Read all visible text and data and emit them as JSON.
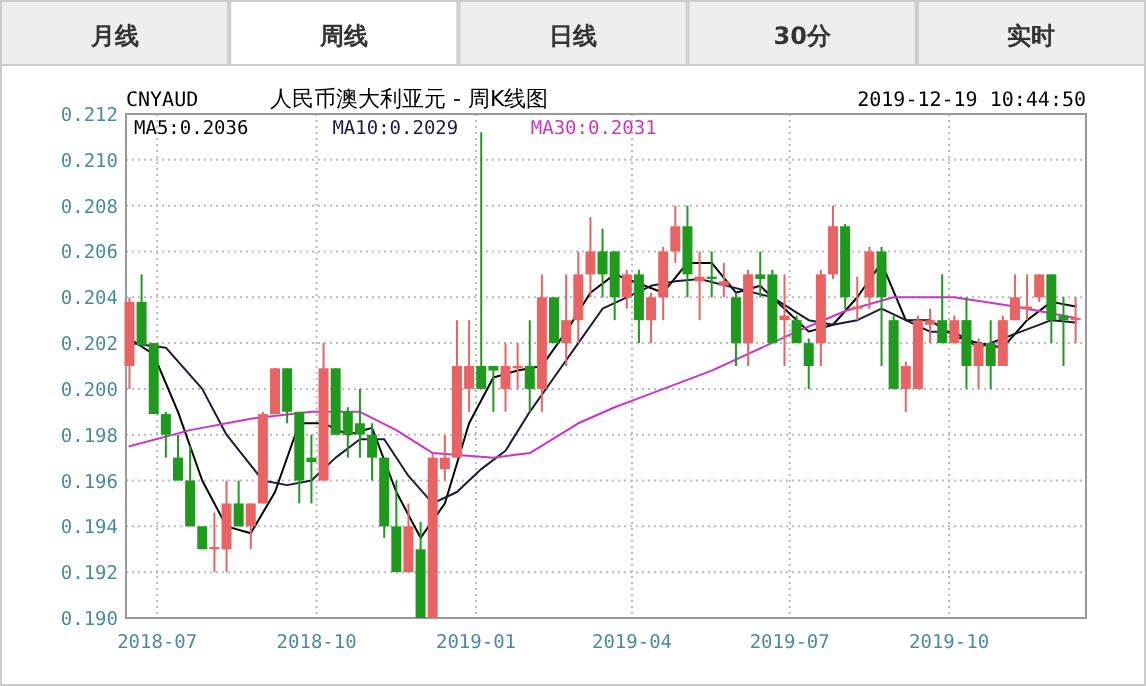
{
  "chart_data": {
    "type": "candlestick",
    "title": "人民币澳大利亚元 - 周K线图",
    "annotations": [
      "月线",
      "周线",
      "日线",
      "30分",
      "实时",
      "CNYAUD",
      "2019-12-19 10:44:50"
    ],
    "x": [
      "2018-06-15",
      "2018-06-22",
      "2018-06-29",
      "2018-07-06",
      "2018-07-13",
      "2018-07-20",
      "2018-07-27",
      "2018-08-03",
      "2018-08-10",
      "2018-08-17",
      "2018-08-24",
      "2018-08-31",
      "2018-09-07",
      "2018-09-14",
      "2018-09-21",
      "2018-09-28",
      "2018-10-05",
      "2018-10-12",
      "2018-10-19",
      "2018-10-26",
      "2018-11-02",
      "2018-11-09",
      "2018-11-16",
      "2018-11-23",
      "2018-11-30",
      "2018-12-07",
      "2018-12-14",
      "2018-12-21",
      "2018-12-28",
      "2019-01-04",
      "2019-01-11",
      "2019-01-18",
      "2019-01-25",
      "2019-02-01",
      "2019-02-08",
      "2019-02-15",
      "2019-02-22",
      "2019-03-01",
      "2019-03-08",
      "2019-03-15",
      "2019-03-22",
      "2019-03-29",
      "2019-04-05",
      "2019-04-12",
      "2019-04-19",
      "2019-04-26",
      "2019-05-03",
      "2019-05-10",
      "2019-05-17",
      "2019-05-24",
      "2019-05-31",
      "2019-06-07",
      "2019-06-14",
      "2019-06-21",
      "2019-06-28",
      "2019-07-05",
      "2019-07-12",
      "2019-07-19",
      "2019-07-26",
      "2019-08-02",
      "2019-08-09",
      "2019-08-16",
      "2019-08-23",
      "2019-08-30",
      "2019-09-06",
      "2019-09-13",
      "2019-09-20",
      "2019-09-27",
      "2019-10-04",
      "2019-10-11",
      "2019-10-18",
      "2019-10-25",
      "2019-11-01",
      "2019-11-08",
      "2019-11-15",
      "2019-11-22",
      "2019-11-29",
      "2019-12-06",
      "2019-12-13"
    ],
    "ohlc": [
      [
        0.201,
        0.204,
        0.2,
        0.2038
      ],
      [
        0.2038,
        0.205,
        0.2019,
        0.2019
      ],
      [
        0.202,
        0.202,
        0.1989,
        0.1989
      ],
      [
        0.1989,
        0.199,
        0.197,
        0.198
      ],
      [
        0.197,
        0.198,
        0.196,
        0.196
      ],
      [
        0.196,
        0.1975,
        0.194,
        0.194
      ],
      [
        0.194,
        0.194,
        0.193,
        0.193
      ],
      [
        0.193,
        0.1946,
        0.192,
        0.1931
      ],
      [
        0.193,
        0.196,
        0.192,
        0.195
      ],
      [
        0.195,
        0.196,
        0.194,
        0.194
      ],
      [
        0.194,
        0.195,
        0.193,
        0.195
      ],
      [
        0.195,
        0.199,
        0.195,
        0.1989
      ],
      [
        0.1989,
        0.2009,
        0.1989,
        0.2009
      ],
      [
        0.2009,
        0.2009,
        0.1985,
        0.199
      ],
      [
        0.199,
        0.199,
        0.195,
        0.196
      ],
      [
        0.197,
        0.198,
        0.195,
        0.1968
      ],
      [
        0.196,
        0.202,
        0.196,
        0.2009
      ],
      [
        0.2009,
        0.2009,
        0.198,
        0.198
      ],
      [
        0.199,
        0.1992,
        0.197,
        0.198
      ],
      [
        0.1985,
        0.2,
        0.197,
        0.198
      ],
      [
        0.198,
        0.1985,
        0.196,
        0.197
      ],
      [
        0.197,
        0.197,
        0.1935,
        0.194
      ],
      [
        0.194,
        0.196,
        0.192,
        0.192
      ],
      [
        0.192,
        0.195,
        0.192,
        0.194
      ],
      [
        0.193,
        0.1942,
        0.19,
        0.19
      ],
      [
        0.19,
        0.1972,
        0.19,
        0.197
      ],
      [
        0.1965,
        0.198,
        0.196,
        0.197
      ],
      [
        0.197,
        0.203,
        0.197,
        0.201
      ],
      [
        0.2,
        0.203,
        0.199,
        0.201
      ],
      [
        0.201,
        0.2112,
        0.2,
        0.2
      ],
      [
        0.201,
        0.201,
        0.199,
        0.2008
      ],
      [
        0.2,
        0.202,
        0.199,
        0.201
      ],
      [
        0.2009,
        0.202,
        0.2,
        0.201
      ],
      [
        0.201,
        0.203,
        0.199,
        0.2
      ],
      [
        0.2,
        0.205,
        0.199,
        0.204
      ],
      [
        0.204,
        0.204,
        0.202,
        0.202
      ],
      [
        0.202,
        0.205,
        0.201,
        0.203
      ],
      [
        0.203,
        0.206,
        0.202,
        0.205
      ],
      [
        0.205,
        0.2075,
        0.204,
        0.206
      ],
      [
        0.206,
        0.207,
        0.204,
        0.205
      ],
      [
        0.206,
        0.206,
        0.203,
        0.204
      ],
      [
        0.204,
        0.2052,
        0.2035,
        0.205
      ],
      [
        0.205,
        0.2052,
        0.202,
        0.203
      ],
      [
        0.203,
        0.2042,
        0.202,
        0.204
      ],
      [
        0.204,
        0.2062,
        0.203,
        0.206
      ],
      [
        0.206,
        0.208,
        0.2055,
        0.2071
      ],
      [
        0.2071,
        0.208,
        0.204,
        0.205
      ],
      [
        0.2047,
        0.206,
        0.203,
        0.2049
      ],
      [
        0.2049,
        0.206,
        0.204,
        0.2048
      ],
      [
        0.2045,
        0.2055,
        0.204,
        0.2047
      ],
      [
        0.204,
        0.2042,
        0.201,
        0.202
      ],
      [
        0.202,
        0.2052,
        0.201,
        0.205
      ],
      [
        0.205,
        0.206,
        0.204,
        0.2048
      ],
      [
        0.205,
        0.2052,
        0.202,
        0.202
      ],
      [
        0.203,
        0.205,
        0.201,
        0.2032
      ],
      [
        0.203,
        0.2032,
        0.202,
        0.202
      ],
      [
        0.202,
        0.2022,
        0.2,
        0.201
      ],
      [
        0.202,
        0.2052,
        0.201,
        0.205
      ],
      [
        0.205,
        0.208,
        0.2048,
        0.2071
      ],
      [
        0.2071,
        0.2072,
        0.2035,
        0.204
      ],
      [
        0.2035,
        0.2049,
        0.203,
        0.2036
      ],
      [
        0.204,
        0.2062,
        0.2035,
        0.206
      ],
      [
        0.206,
        0.2062,
        0.201,
        0.204
      ],
      [
        0.203,
        0.2032,
        0.2,
        0.2
      ],
      [
        0.2,
        0.2012,
        0.199,
        0.201
      ],
      [
        0.2,
        0.2032,
        0.2,
        0.203
      ],
      [
        0.2028,
        0.2035,
        0.202,
        0.203
      ],
      [
        0.203,
        0.205,
        0.202,
        0.202
      ],
      [
        0.202,
        0.2032,
        0.202,
        0.203
      ],
      [
        0.203,
        0.204,
        0.2,
        0.201
      ],
      [
        0.201,
        0.2022,
        0.2,
        0.202
      ],
      [
        0.202,
        0.203,
        0.2,
        0.201
      ],
      [
        0.201,
        0.2032,
        0.201,
        0.203
      ],
      [
        0.203,
        0.205,
        0.203,
        0.204
      ],
      [
        0.2035,
        0.205,
        0.203,
        0.2036
      ],
      [
        0.204,
        0.205,
        0.2038,
        0.205
      ],
      [
        0.205,
        0.205,
        0.202,
        0.203
      ],
      [
        0.2032,
        0.204,
        0.201,
        0.203
      ],
      [
        0.203,
        0.204,
        0.202,
        0.2031
      ]
    ],
    "colors": [
      "#e86464",
      "#1f9a1f",
      "#1f9a1f",
      "#1f9a1f",
      "#1f9a1f",
      "#1f9a1f",
      "#1f9a1f",
      "#e86464",
      "#e86464",
      "#1f9a1f",
      "#e86464",
      "#e86464",
      "#e86464",
      "#1f9a1f",
      "#1f9a1f",
      "#1f9a1f",
      "#e86464",
      "#1f9a1f",
      "#1f9a1f",
      "#1f9a1f",
      "#1f9a1f",
      "#1f9a1f",
      "#1f9a1f",
      "#e86464",
      "#1f9a1f",
      "#e86464",
      "#e86464",
      "#e86464",
      "#e86464",
      "#1f9a1f",
      "#1f9a1f",
      "#e86464",
      "#e86464",
      "#1f9a1f",
      "#e86464",
      "#1f9a1f",
      "#e86464",
      "#e86464",
      "#e86464",
      "#1f9a1f",
      "#1f9a1f",
      "#e86464",
      "#1f9a1f",
      "#e86464",
      "#e86464",
      "#e86464",
      "#1f9a1f",
      "#e86464",
      "#1f9a1f",
      "#e86464",
      "#1f9a1f",
      "#e86464",
      "#1f9a1f",
      "#1f9a1f",
      "#e86464",
      "#1f9a1f",
      "#1f9a1f",
      "#e86464",
      "#e86464",
      "#1f9a1f",
      "#e86464",
      "#e86464",
      "#1f9a1f",
      "#1f9a1f",
      "#e86464",
      "#e86464",
      "#e86464",
      "#1f9a1f",
      "#e86464",
      "#1f9a1f",
      "#e86464",
      "#1f9a1f",
      "#e86464",
      "#e86464",
      "#e86464",
      "#e86464",
      "#1f9a1f",
      "#1f9a1f",
      "#e86464"
    ],
    "series": [
      {
        "name": "MA5:0.2036",
        "type": "line",
        "color": "#000000",
        "x": [
          "2018-06-15",
          "2018-06-29",
          "2018-07-13",
          "2018-07-27",
          "2018-08-10",
          "2018-08-24",
          "2018-09-07",
          "2018-09-21",
          "2018-10-05",
          "2018-10-19",
          "2018-11-02",
          "2018-11-16",
          "2018-11-30",
          "2018-12-14",
          "2018-12-28",
          "2019-01-11",
          "2019-01-25",
          "2019-02-08",
          "2019-02-22",
          "2019-03-08",
          "2019-03-22",
          "2019-04-05",
          "2019-04-19",
          "2019-05-03",
          "2019-05-17",
          "2019-05-31",
          "2019-06-14",
          "2019-06-28",
          "2019-07-12",
          "2019-07-26",
          "2019-08-09",
          "2019-08-23",
          "2019-09-06",
          "2019-09-20",
          "2019-10-04",
          "2019-10-18",
          "2019-11-01",
          "2019-11-15",
          "2019-11-29",
          "2019-12-13"
        ],
        "values": [
          0.2022,
          0.2015,
          0.199,
          0.196,
          0.194,
          0.1937,
          0.1955,
          0.1985,
          0.1985,
          0.198,
          0.1983,
          0.1955,
          0.1935,
          0.195,
          0.1985,
          0.2005,
          0.2008,
          0.201,
          0.2025,
          0.2042,
          0.205,
          0.2046,
          0.2042,
          0.2055,
          0.2055,
          0.2042,
          0.2045,
          0.2035,
          0.2025,
          0.2028,
          0.204,
          0.2055,
          0.203,
          0.203,
          0.2023,
          0.202,
          0.2018,
          0.203,
          0.2038,
          0.2036
        ]
      },
      {
        "name": "MA10:0.2029",
        "type": "line",
        "color": "#1a1a3a",
        "x": [
          "2018-06-15",
          "2018-07-06",
          "2018-07-27",
          "2018-08-10",
          "2018-08-31",
          "2018-09-14",
          "2018-09-28",
          "2018-10-12",
          "2018-10-26",
          "2018-11-09",
          "2018-11-23",
          "2018-12-07",
          "2018-12-21",
          "2019-01-04",
          "2019-01-18",
          "2019-02-01",
          "2019-02-15",
          "2019-03-01",
          "2019-03-15",
          "2019-03-29",
          "2019-04-12",
          "2019-04-26",
          "2019-05-10",
          "2019-05-31",
          "2019-06-21",
          "2019-07-12",
          "2019-07-26",
          "2019-08-09",
          "2019-08-23",
          "2019-09-06",
          "2019-09-20",
          "2019-10-04",
          "2019-10-18",
          "2019-11-01",
          "2019-11-15",
          "2019-11-29",
          "2019-12-13"
        ],
        "values": [
          0.202,
          0.2018,
          0.2,
          0.198,
          0.196,
          0.1958,
          0.196,
          0.197,
          0.1978,
          0.1978,
          0.1962,
          0.195,
          0.1955,
          0.1965,
          0.1973,
          0.199,
          0.2005,
          0.202,
          0.2035,
          0.204,
          0.2045,
          0.2047,
          0.2048,
          0.2044,
          0.204,
          0.203,
          0.2028,
          0.203,
          0.2035,
          0.203,
          0.2025,
          0.2025,
          0.2018,
          0.2022,
          0.2026,
          0.203,
          0.2029
        ]
      },
      {
        "name": "MA30:0.2031",
        "type": "line",
        "color": "#cc33cc",
        "x": [
          "2018-06-15",
          "2018-07-20",
          "2018-08-24",
          "2018-09-28",
          "2018-10-26",
          "2018-11-16",
          "2018-12-07",
          "2019-01-11",
          "2019-02-01",
          "2019-03-01",
          "2019-03-22",
          "2019-04-05",
          "2019-05-17",
          "2019-07-05",
          "2019-08-02",
          "2019-08-30",
          "2019-10-04",
          "2019-11-08",
          "2019-12-13"
        ],
        "values": [
          0.1975,
          0.1982,
          0.1987,
          0.199,
          0.199,
          0.1982,
          0.1972,
          0.197,
          0.1972,
          0.1985,
          0.1992,
          0.1996,
          0.2008,
          0.2025,
          0.2034,
          0.204,
          0.204,
          0.2036,
          0.2031
        ]
      }
    ],
    "xlim": [
      "2018-06-13",
      "2019-12-19"
    ],
    "xticks": [
      "2018-07",
      "2018-10",
      "2019-01",
      "2019-04",
      "2019-07",
      "2019-10"
    ],
    "ylim": [
      0.19,
      0.212
    ],
    "yticks": [
      {
        "value": 0.19,
        "label": "0.190"
      },
      {
        "value": 0.192,
        "label": "0.192"
      },
      {
        "value": 0.194,
        "label": "0.194"
      },
      {
        "value": 0.196,
        "label": "0.196"
      },
      {
        "value": 0.198,
        "label": "0.198"
      },
      {
        "value": 0.2,
        "label": "0.200"
      },
      {
        "value": 0.202,
        "label": "0.202"
      },
      {
        "value": 0.204,
        "label": "0.204"
      },
      {
        "value": 0.206,
        "label": "0.206"
      },
      {
        "value": 0.208,
        "label": "0.208"
      },
      {
        "value": 0.21,
        "label": "0.210"
      },
      {
        "value": 0.212,
        "label": "0.212"
      }
    ],
    "grid": true,
    "legend": "top"
  }
}
